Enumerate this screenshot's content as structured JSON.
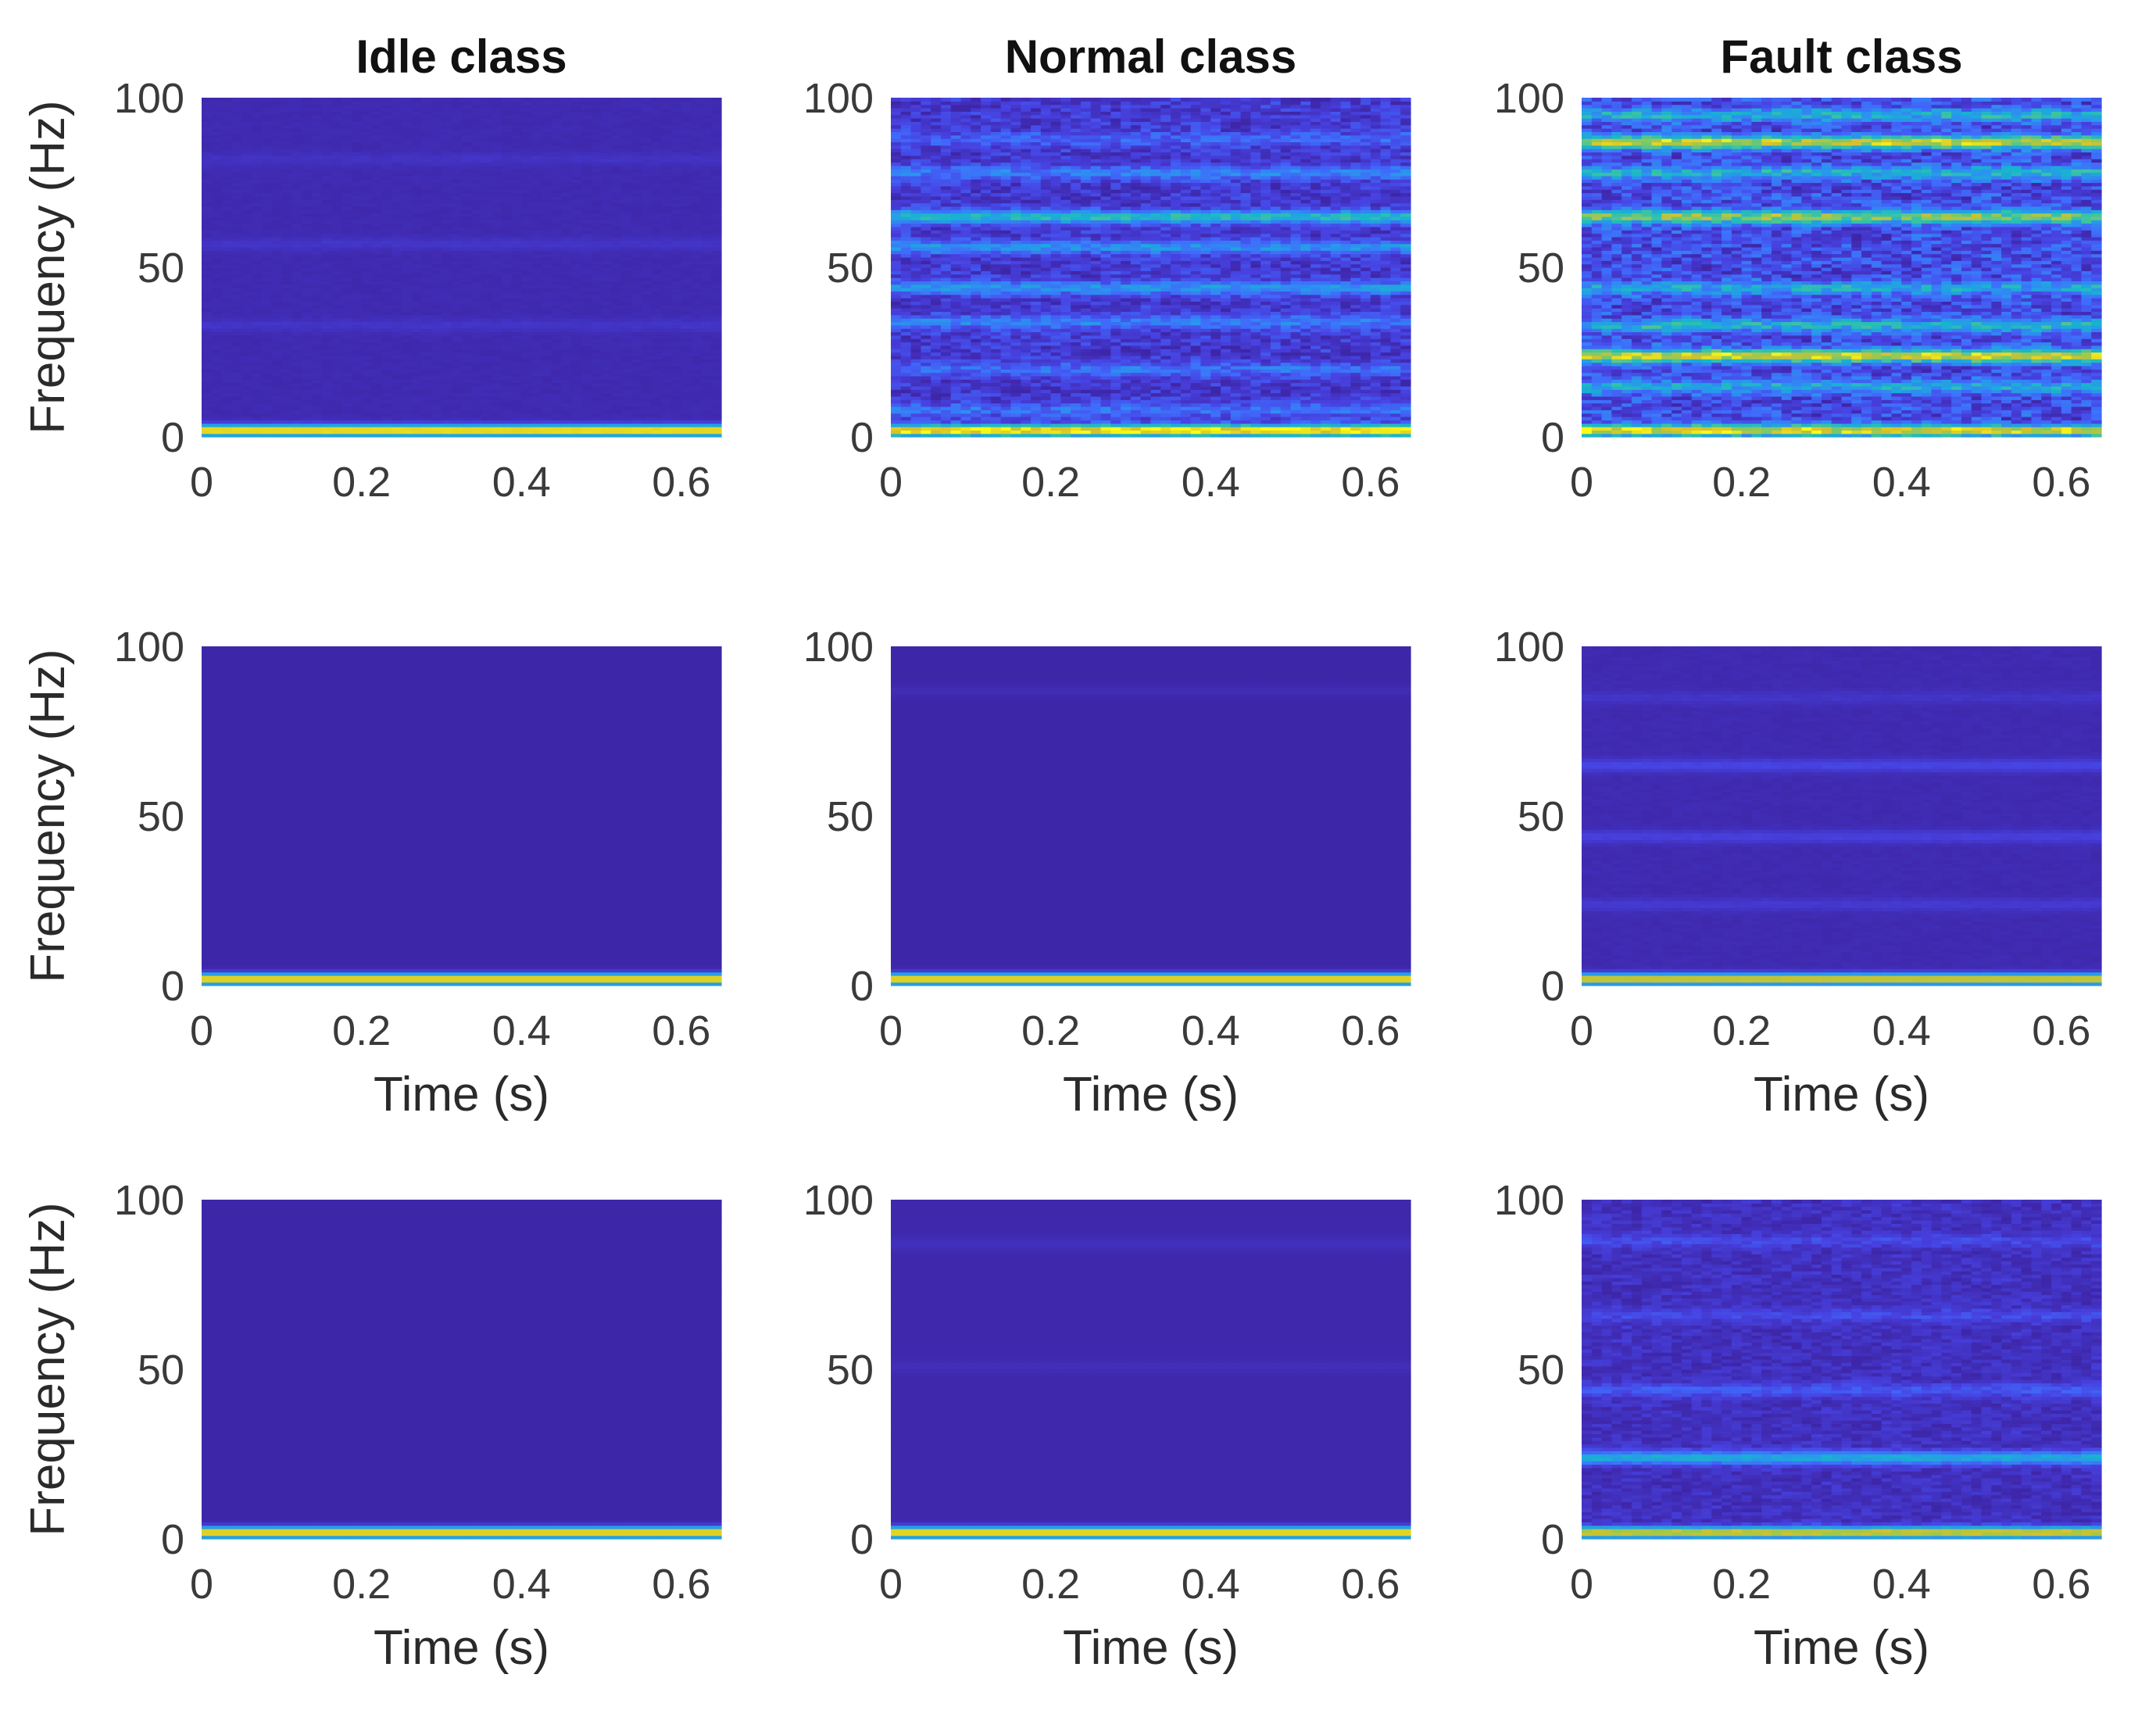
{
  "figure": {
    "colormap": [
      "#3e26a8",
      "#4741e0",
      "#3f6cfb",
      "#2a95ee",
      "#18b4cf",
      "#3ec59f",
      "#8ec95b",
      "#d6c12c",
      "#f9fb15"
    ]
  },
  "chart_data": [
    {
      "type": "heatmap",
      "title": "Idle class",
      "xlabel": "",
      "ylabel": "Frequency (Hz)",
      "xlim": [
        0,
        0.65
      ],
      "ylim": [
        0,
        100
      ],
      "x_ticks": [
        "0",
        "0.2",
        "0.4",
        "0.6"
      ],
      "y_ticks": [
        "0",
        "50",
        "100"
      ],
      "baseline_intensity": 0.02,
      "bands": [
        {
          "freq": 2,
          "intensity": 1.0
        },
        {
          "freq": 33,
          "intensity": 0.05
        },
        {
          "freq": 57,
          "intensity": 0.05
        },
        {
          "freq": 82,
          "intensity": 0.04
        }
      ],
      "texture": 0.01
    },
    {
      "type": "heatmap",
      "title": "Normal class",
      "xlabel": "",
      "ylabel": "",
      "xlim": [
        0,
        0.65
      ],
      "ylim": [
        0,
        100
      ],
      "x_ticks": [
        "0",
        "0.2",
        "0.4",
        "0.6"
      ],
      "y_ticks": [
        "0",
        "50",
        "100"
      ],
      "baseline_intensity": 0.09,
      "bands": [
        {
          "freq": 2,
          "intensity": 0.95
        },
        {
          "freq": 8,
          "intensity": 0.18
        },
        {
          "freq": 20,
          "intensity": 0.18
        },
        {
          "freq": 34,
          "intensity": 0.22
        },
        {
          "freq": 44,
          "intensity": 0.3
        },
        {
          "freq": 56,
          "intensity": 0.28
        },
        {
          "freq": 65,
          "intensity": 0.45
        },
        {
          "freq": 78,
          "intensity": 0.22
        },
        {
          "freq": 88,
          "intensity": 0.15
        }
      ],
      "texture": 0.09
    },
    {
      "type": "heatmap",
      "title": "Fault class",
      "xlabel": "",
      "ylabel": "",
      "xlim": [
        0,
        0.65
      ],
      "ylim": [
        0,
        100
      ],
      "x_ticks": [
        "0",
        "0.2",
        "0.4",
        "0.6"
      ],
      "y_ticks": [
        "0",
        "50",
        "100"
      ],
      "baseline_intensity": 0.15,
      "bands": [
        {
          "freq": 2,
          "intensity": 0.8
        },
        {
          "freq": 15,
          "intensity": 0.3
        },
        {
          "freq": 24,
          "intensity": 0.75
        },
        {
          "freq": 33,
          "intensity": 0.35
        },
        {
          "freq": 44,
          "intensity": 0.3
        },
        {
          "freq": 65,
          "intensity": 0.6
        },
        {
          "freq": 78,
          "intensity": 0.35
        },
        {
          "freq": 87,
          "intensity": 0.7
        },
        {
          "freq": 95,
          "intensity": 0.35
        }
      ],
      "texture": 0.14
    },
    {
      "type": "heatmap",
      "title": "",
      "xlabel": "Time (s)",
      "ylabel": "Frequency (Hz)",
      "xlim": [
        0,
        0.65
      ],
      "ylim": [
        0,
        100
      ],
      "x_ticks": [
        "0",
        "0.2",
        "0.4",
        "0.6"
      ],
      "y_ticks": [
        "0",
        "50",
        "100"
      ],
      "baseline_intensity": 0.0,
      "bands": [
        {
          "freq": 2,
          "intensity": 1.0
        }
      ],
      "texture": 0.0
    },
    {
      "type": "heatmap",
      "title": "",
      "xlabel": "Time (s)",
      "ylabel": "",
      "xlim": [
        0,
        0.65
      ],
      "ylim": [
        0,
        100
      ],
      "x_ticks": [
        "0",
        "0.2",
        "0.4",
        "0.6"
      ],
      "y_ticks": [
        "0",
        "50",
        "100"
      ],
      "baseline_intensity": 0.0,
      "bands": [
        {
          "freq": 2,
          "intensity": 1.0
        },
        {
          "freq": 87,
          "intensity": 0.03
        }
      ],
      "texture": 0.0
    },
    {
      "type": "heatmap",
      "title": "",
      "xlabel": "Time (s)",
      "ylabel": "",
      "xlim": [
        0,
        0.65
      ],
      "ylim": [
        0,
        100
      ],
      "x_ticks": [
        "0",
        "0.2",
        "0.4",
        "0.6"
      ],
      "y_ticks": [
        "0",
        "50",
        "100"
      ],
      "baseline_intensity": 0.02,
      "bands": [
        {
          "freq": 2,
          "intensity": 0.9
        },
        {
          "freq": 24,
          "intensity": 0.07
        },
        {
          "freq": 44,
          "intensity": 0.1
        },
        {
          "freq": 65,
          "intensity": 0.12
        },
        {
          "freq": 85,
          "intensity": 0.05
        }
      ],
      "texture": 0.01
    },
    {
      "type": "heatmap",
      "title": "",
      "xlabel": "Time (s)",
      "ylabel": "Frequency (Hz)",
      "xlim": [
        0,
        0.65
      ],
      "ylim": [
        0,
        100
      ],
      "x_ticks": [
        "0",
        "0.2",
        "0.4",
        "0.6"
      ],
      "y_ticks": [
        "0",
        "50",
        "100"
      ],
      "baseline_intensity": 0.0,
      "bands": [
        {
          "freq": 2,
          "intensity": 1.0
        }
      ],
      "texture": 0.0
    },
    {
      "type": "heatmap",
      "title": "",
      "xlabel": "Time (s)",
      "ylabel": "",
      "xlim": [
        0,
        0.65
      ],
      "ylim": [
        0,
        100
      ],
      "x_ticks": [
        "0",
        "0.2",
        "0.4",
        "0.6"
      ],
      "y_ticks": [
        "0",
        "50",
        "100"
      ],
      "baseline_intensity": 0.01,
      "bands": [
        {
          "freq": 2,
          "intensity": 1.0
        },
        {
          "freq": 51,
          "intensity": 0.03
        },
        {
          "freq": 87,
          "intensity": 0.04
        }
      ],
      "texture": 0.0
    },
    {
      "type": "heatmap",
      "title": "",
      "xlabel": "Time (s)",
      "ylabel": "",
      "xlim": [
        0,
        0.65
      ],
      "ylim": [
        0,
        100
      ],
      "x_ticks": [
        "0",
        "0.2",
        "0.4",
        "0.6"
      ],
      "y_ticks": [
        "0",
        "50",
        "100"
      ],
      "baseline_intensity": 0.05,
      "bands": [
        {
          "freq": 2,
          "intensity": 0.85
        },
        {
          "freq": 24,
          "intensity": 0.42
        },
        {
          "freq": 44,
          "intensity": 0.15
        },
        {
          "freq": 66,
          "intensity": 0.1
        },
        {
          "freq": 88,
          "intensity": 0.1
        }
      ],
      "texture": 0.05
    }
  ]
}
